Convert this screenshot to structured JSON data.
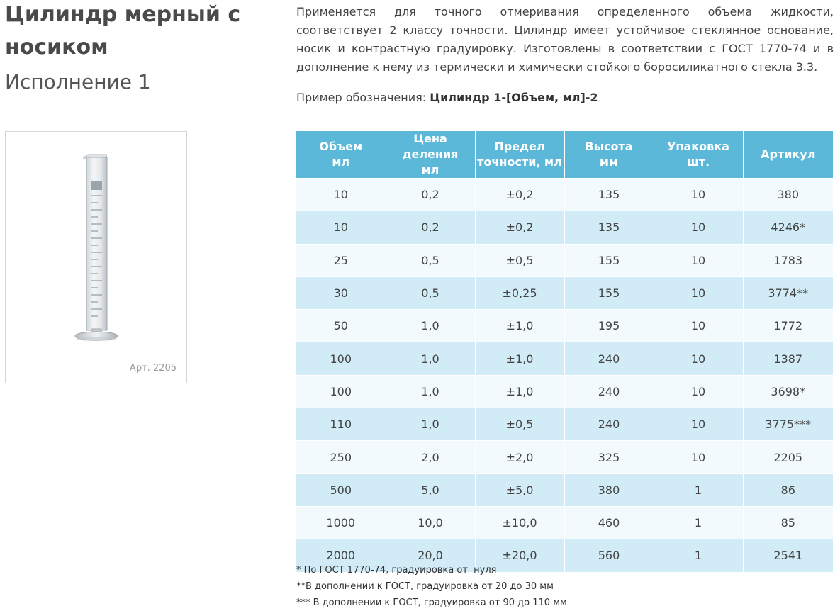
{
  "title": "Цилиндр мерный с носиком",
  "subtitle": "Исполнение 1",
  "image": {
    "caption": "Арт. 2205",
    "icon": "graduated-cylinder-image"
  },
  "description": "Применяется для точного отмеривания определенного объема жидкости, соответствует 2 классу точности. Цилиндр имеет устойчивое стеклянное основание, носик и контрастную градуировку. Изготовлены в соответствии с ГОСТ 1770-74 и в дополнение к нему из термически и химически стойкого боросиликатного стекла 3.3.",
  "example": {
    "label": "Пример обозначения: ",
    "value": "Цилиндр 1-[Объем, мл]-2"
  },
  "table": {
    "headers": [
      [
        "Объем",
        "мл"
      ],
      [
        "Цена деления",
        "мл"
      ],
      [
        "Предел",
        "точности, мл"
      ],
      [
        "Высота",
        "мм"
      ],
      [
        "Упаковка",
        "шт."
      ],
      [
        "Артикул",
        ""
      ]
    ],
    "rows": [
      [
        "10",
        "0,2",
        "±0,2",
        "135",
        "10",
        "380"
      ],
      [
        "10",
        "0,2",
        "±0,2",
        "135",
        "10",
        "4246*"
      ],
      [
        "25",
        "0,5",
        "±0,5",
        "155",
        "10",
        "1783"
      ],
      [
        "30",
        "0,5",
        "±0,25",
        "155",
        "10",
        "3774**"
      ],
      [
        "50",
        "1,0",
        "±1,0",
        "195",
        "10",
        "1772"
      ],
      [
        "100",
        "1,0",
        "±1,0",
        "240",
        "10",
        "1387"
      ],
      [
        "100",
        "1,0",
        "±1,0",
        "240",
        "10",
        "3698*"
      ],
      [
        "110",
        "1,0",
        "±0,5",
        "240",
        "10",
        "3775***"
      ],
      [
        "250",
        "2,0",
        "±2,0",
        "325",
        "10",
        "2205"
      ],
      [
        "500",
        "5,0",
        "±5,0",
        "380",
        "1",
        "86"
      ],
      [
        "1000",
        "10,0",
        "±10,0",
        "460",
        "1",
        "85"
      ],
      [
        "2000",
        "20,0",
        "±20,0",
        "560",
        "1",
        "2541"
      ]
    ]
  },
  "notes": [
    "* По ГОСТ 1770-74, градуировка от  нуля",
    "**В дополнении к ГОСТ, градуировка от 20 до 30 мм",
    "*** В дополнении к ГОСТ, градуировка от 90 до 110 мм"
  ],
  "colors": {
    "header_bg": "#5bb8d9",
    "row_light": "#f2fafd",
    "row_dark": "#d2ecf7"
  }
}
